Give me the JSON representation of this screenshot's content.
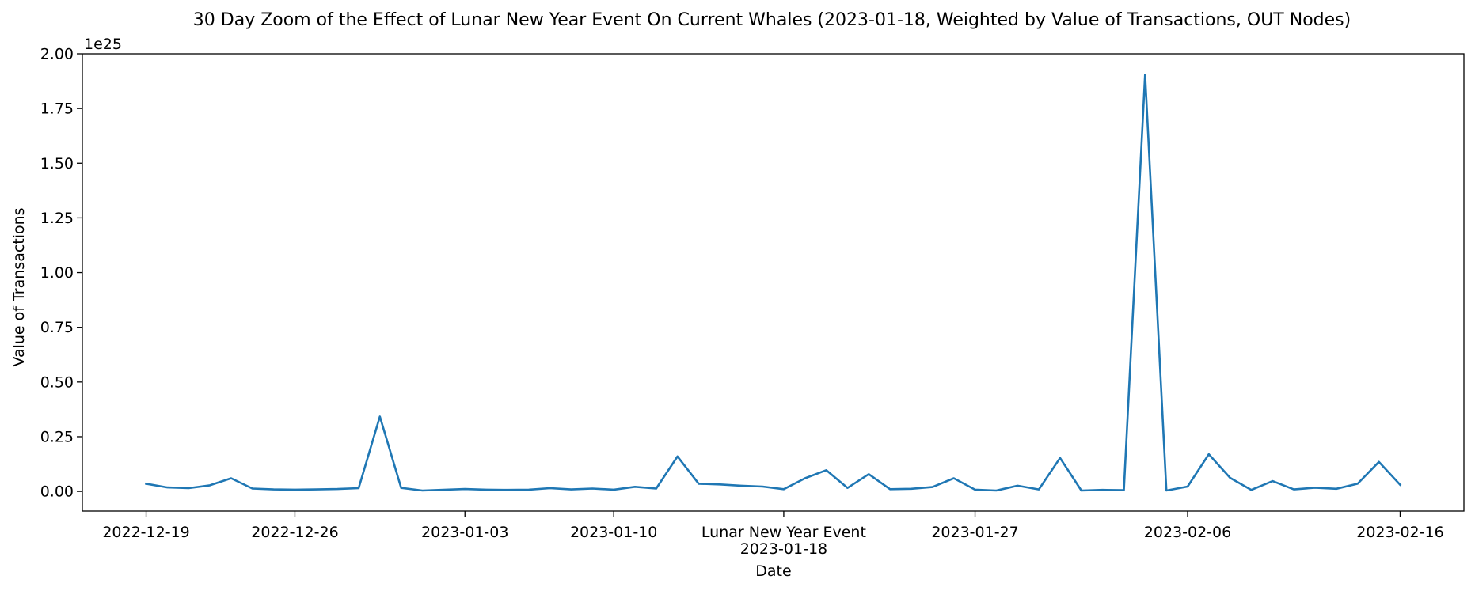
{
  "chart_data": {
    "type": "line",
    "title": "30 Day Zoom of the Effect of Lunar New Year Event On Current Whales (2023-01-18, Weighted by Value of Transactions, OUT Nodes)",
    "xlabel": "Date",
    "ylabel": "Value of Transactions",
    "y_offset_label": "1e25",
    "y_scale_multiplier": 1e+25,
    "ylim": [
      -0.09,
      2.0
    ],
    "y_ticks": [
      0.0,
      0.25,
      0.5,
      0.75,
      1.0,
      1.25,
      1.5,
      1.75,
      2.0
    ],
    "y_tick_labels": [
      "0.00",
      "0.25",
      "0.50",
      "0.75",
      "1.00",
      "1.25",
      "1.50",
      "1.75",
      "2.00"
    ],
    "xlim": [
      "2022-12-16",
      "2023-02-19"
    ],
    "x_ticks": [
      "2022-12-19",
      "2022-12-26",
      "2023-01-03",
      "2023-01-10",
      "2023-01-18",
      "2023-01-27",
      "2023-02-06",
      "2023-02-16"
    ],
    "x_tick_labels": [
      "2022-12-19",
      "2022-12-26",
      "2023-01-03",
      "2023-01-10",
      "2023-01-18",
      "2023-01-27",
      "2023-02-06",
      "2023-02-16"
    ],
    "event_label": "Lunar New Year Event",
    "event_date": "2023-01-18",
    "grid": false,
    "line_color": "#1f77b4",
    "x": [
      "2022-12-19",
      "2022-12-20",
      "2022-12-21",
      "2022-12-22",
      "2022-12-23",
      "2022-12-24",
      "2022-12-25",
      "2022-12-26",
      "2022-12-27",
      "2022-12-28",
      "2022-12-29",
      "2022-12-30",
      "2022-12-31",
      "2023-01-01",
      "2023-01-03",
      "2023-01-04",
      "2023-01-05",
      "2023-01-06",
      "2023-01-07",
      "2023-01-08",
      "2023-01-09",
      "2023-01-10",
      "2023-01-11",
      "2023-01-12",
      "2023-01-13",
      "2023-01-14",
      "2023-01-15",
      "2023-01-16",
      "2023-01-17",
      "2023-01-18",
      "2023-01-19",
      "2023-01-20",
      "2023-01-21",
      "2023-01-22",
      "2023-01-23",
      "2023-01-24",
      "2023-01-25",
      "2023-01-26",
      "2023-01-27",
      "2023-01-28",
      "2023-01-29",
      "2023-01-30",
      "2023-01-31",
      "2023-02-01",
      "2023-02-02",
      "2023-02-03",
      "2023-02-04",
      "2023-02-05",
      "2023-02-06",
      "2023-02-07",
      "2023-02-08",
      "2023-02-09",
      "2023-02-10",
      "2023-02-11",
      "2023-02-12",
      "2023-02-13",
      "2023-02-14",
      "2023-02-15",
      "2023-02-16"
    ],
    "series": [
      {
        "values": [
          0.035,
          0.018,
          0.015,
          0.028,
          0.06,
          0.013,
          0.009,
          0.008,
          0.009,
          0.011,
          0.015,
          0.342,
          0.016,
          0.004,
          0.011,
          0.008,
          0.007,
          0.008,
          0.015,
          0.009,
          0.013,
          0.008,
          0.021,
          0.013,
          0.16,
          0.035,
          0.032,
          0.026,
          0.022,
          0.01,
          0.06,
          0.097,
          0.016,
          0.079,
          0.01,
          0.012,
          0.02,
          0.06,
          0.008,
          0.004,
          0.026,
          0.009,
          0.153,
          0.004,
          0.007,
          0.006,
          1.905,
          0.004,
          0.022,
          0.17,
          0.062,
          0.007,
          0.047,
          0.009,
          0.017,
          0.012,
          0.035,
          0.135,
          0.03
        ]
      }
    ]
  }
}
